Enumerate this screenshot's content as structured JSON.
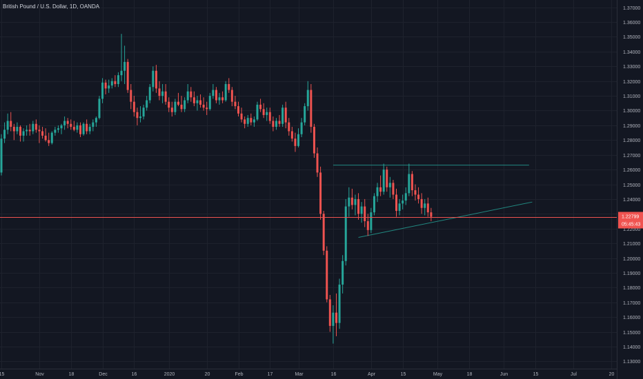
{
  "header": {
    "title": "British Pound / U.S. Dollar, 1D, OANDA"
  },
  "colors": {
    "background": "#131722",
    "grid": "#1e222d",
    "up": "#26a69a",
    "down": "#ef5350",
    "trendline": "#26a69a",
    "price_line": "#ef5350"
  },
  "price_tag": {
    "price": "1.22799",
    "countdown": "05:45:43",
    "value": 1.22799
  },
  "chart_data": {
    "type": "candlestick",
    "ylim": [
      1.125,
      1.375
    ],
    "y_ticks": [
      "1.13000",
      "1.14000",
      "1.15000",
      "1.16000",
      "1.17000",
      "1.18000",
      "1.19000",
      "1.20000",
      "1.21000",
      "1.22000",
      "1.23000",
      "1.24000",
      "1.25000",
      "1.26000",
      "1.27000",
      "1.28000",
      "1.29000",
      "1.30000",
      "1.31000",
      "1.32000",
      "1.33000",
      "1.34000",
      "1.35000",
      "1.36000",
      "1.37000"
    ],
    "x_ticks": [
      {
        "label": "15",
        "bar": 0
      },
      {
        "label": "Nov",
        "bar": 12
      },
      {
        "label": "18",
        "bar": 22
      },
      {
        "label": "Dec",
        "bar": 32
      },
      {
        "label": "16",
        "bar": 42
      },
      {
        "label": "2020",
        "bar": 53
      },
      {
        "label": "20",
        "bar": 65
      },
      {
        "label": "Feb",
        "bar": 75
      },
      {
        "label": "17",
        "bar": 85
      },
      {
        "label": "Mar",
        "bar": 94
      },
      {
        "label": "16",
        "bar": 105
      },
      {
        "label": "Apr",
        "bar": 117
      },
      {
        "label": "15",
        "bar": 127
      },
      {
        "label": "May",
        "bar": 138
      },
      {
        "label": "18",
        "bar": 148
      },
      {
        "label": "Jun",
        "bar": 159
      },
      {
        "label": "15",
        "bar": 169
      },
      {
        "label": "Jul",
        "bar": 181
      },
      {
        "label": "20",
        "bar": 193
      }
    ],
    "trendlines": [
      {
        "x1": 105,
        "y1": 1.263,
        "x2": 167,
        "y2": 1.263
      },
      {
        "x1": 113,
        "y1": 1.214,
        "x2": 168,
        "y2": 1.238
      }
    ],
    "ohlc": [
      [
        1.258,
        1.284,
        1.256,
        1.281
      ],
      [
        1.281,
        1.292,
        1.278,
        1.287
      ],
      [
        1.287,
        1.298,
        1.284,
        1.293
      ],
      [
        1.293,
        1.299,
        1.286,
        1.289
      ],
      [
        1.289,
        1.291,
        1.28,
        1.286
      ],
      [
        1.286,
        1.292,
        1.284,
        1.289
      ],
      [
        1.289,
        1.29,
        1.279,
        1.283
      ],
      [
        1.283,
        1.288,
        1.279,
        1.286
      ],
      [
        1.286,
        1.29,
        1.283,
        1.287
      ],
      [
        1.287,
        1.291,
        1.283,
        1.286
      ],
      [
        1.286,
        1.293,
        1.284,
        1.291
      ],
      [
        1.291,
        1.294,
        1.285,
        1.287
      ],
      [
        1.287,
        1.29,
        1.278,
        1.286
      ],
      [
        1.286,
        1.289,
        1.281,
        1.283
      ],
      [
        1.283,
        1.288,
        1.279,
        1.28
      ],
      [
        1.28,
        1.285,
        1.276,
        1.278
      ],
      [
        1.278,
        1.286,
        1.277,
        1.285
      ],
      [
        1.285,
        1.289,
        1.283,
        1.287
      ],
      [
        1.287,
        1.29,
        1.285,
        1.288
      ],
      [
        1.288,
        1.291,
        1.284,
        1.29
      ],
      [
        1.29,
        1.296,
        1.287,
        1.293
      ],
      [
        1.293,
        1.295,
        1.288,
        1.291
      ],
      [
        1.291,
        1.294,
        1.287,
        1.289
      ],
      [
        1.289,
        1.293,
        1.286,
        1.287
      ],
      [
        1.287,
        1.292,
        1.285,
        1.29
      ],
      [
        1.29,
        1.292,
        1.282,
        1.284
      ],
      [
        1.284,
        1.292,
        1.283,
        1.291
      ],
      [
        1.291,
        1.294,
        1.284,
        1.286
      ],
      [
        1.286,
        1.291,
        1.284,
        1.289
      ],
      [
        1.289,
        1.294,
        1.286,
        1.292
      ],
      [
        1.292,
        1.296,
        1.289,
        1.295
      ],
      [
        1.295,
        1.31,
        1.294,
        1.308
      ],
      [
        1.308,
        1.322,
        1.305,
        1.319
      ],
      [
        1.319,
        1.321,
        1.311,
        1.315
      ],
      [
        1.315,
        1.321,
        1.312,
        1.317
      ],
      [
        1.317,
        1.322,
        1.315,
        1.32
      ],
      [
        1.32,
        1.324,
        1.316,
        1.318
      ],
      [
        1.318,
        1.326,
        1.316,
        1.324
      ],
      [
        1.324,
        1.352,
        1.32,
        1.327
      ],
      [
        1.327,
        1.344,
        1.318,
        1.333
      ],
      [
        1.333,
        1.335,
        1.312,
        1.314
      ],
      [
        1.314,
        1.318,
        1.301,
        1.306
      ],
      [
        1.306,
        1.31,
        1.296,
        1.299
      ],
      [
        1.299,
        1.302,
        1.29,
        1.295
      ],
      [
        1.295,
        1.303,
        1.292,
        1.296
      ],
      [
        1.296,
        1.304,
        1.294,
        1.302
      ],
      [
        1.302,
        1.31,
        1.3,
        1.307
      ],
      [
        1.307,
        1.318,
        1.305,
        1.316
      ],
      [
        1.316,
        1.33,
        1.313,
        1.327
      ],
      [
        1.327,
        1.331,
        1.312,
        1.315
      ],
      [
        1.315,
        1.32,
        1.307,
        1.31
      ],
      [
        1.31,
        1.318,
        1.305,
        1.313
      ],
      [
        1.313,
        1.318,
        1.304,
        1.306
      ],
      [
        1.306,
        1.309,
        1.299,
        1.302
      ],
      [
        1.302,
        1.306,
        1.296,
        1.299
      ],
      [
        1.299,
        1.308,
        1.297,
        1.306
      ],
      [
        1.306,
        1.312,
        1.303,
        1.304
      ],
      [
        1.304,
        1.31,
        1.299,
        1.301
      ],
      [
        1.301,
        1.309,
        1.299,
        1.307
      ],
      [
        1.307,
        1.318,
        1.305,
        1.313
      ],
      [
        1.313,
        1.316,
        1.306,
        1.309
      ],
      [
        1.309,
        1.313,
        1.303,
        1.305
      ],
      [
        1.305,
        1.31,
        1.3,
        1.307
      ],
      [
        1.307,
        1.311,
        1.302,
        1.304
      ],
      [
        1.304,
        1.309,
        1.3,
        1.302
      ],
      [
        1.302,
        1.306,
        1.297,
        1.301
      ],
      [
        1.301,
        1.312,
        1.3,
        1.31
      ],
      [
        1.31,
        1.318,
        1.308,
        1.314
      ],
      [
        1.314,
        1.316,
        1.305,
        1.307
      ],
      [
        1.307,
        1.312,
        1.304,
        1.309
      ],
      [
        1.309,
        1.313,
        1.305,
        1.307
      ],
      [
        1.307,
        1.32,
        1.306,
        1.318
      ],
      [
        1.318,
        1.322,
        1.312,
        1.314
      ],
      [
        1.314,
        1.316,
        1.303,
        1.306
      ],
      [
        1.306,
        1.31,
        1.301,
        1.303
      ],
      [
        1.303,
        1.306,
        1.296,
        1.298
      ],
      [
        1.298,
        1.302,
        1.292,
        1.294
      ],
      [
        1.294,
        1.296,
        1.288,
        1.291
      ],
      [
        1.291,
        1.297,
        1.289,
        1.295
      ],
      [
        1.295,
        1.298,
        1.29,
        1.292
      ],
      [
        1.292,
        1.296,
        1.289,
        1.294
      ],
      [
        1.294,
        1.306,
        1.293,
        1.304
      ],
      [
        1.304,
        1.308,
        1.299,
        1.301
      ],
      [
        1.301,
        1.305,
        1.295,
        1.297
      ],
      [
        1.297,
        1.302,
        1.293,
        1.299
      ],
      [
        1.299,
        1.302,
        1.291,
        1.293
      ],
      [
        1.293,
        1.296,
        1.286,
        1.289
      ],
      [
        1.289,
        1.295,
        1.287,
        1.293
      ],
      [
        1.293,
        1.297,
        1.289,
        1.291
      ],
      [
        1.291,
        1.304,
        1.289,
        1.302
      ],
      [
        1.302,
        1.306,
        1.288,
        1.292
      ],
      [
        1.292,
        1.295,
        1.283,
        1.286
      ],
      [
        1.286,
        1.289,
        1.279,
        1.281
      ],
      [
        1.281,
        1.285,
        1.272,
        1.276
      ],
      [
        1.276,
        1.288,
        1.275,
        1.284
      ],
      [
        1.284,
        1.295,
        1.282,
        1.292
      ],
      [
        1.292,
        1.305,
        1.29,
        1.303
      ],
      [
        1.303,
        1.32,
        1.3,
        1.314
      ],
      [
        1.314,
        1.318,
        1.285,
        1.289
      ],
      [
        1.289,
        1.291,
        1.268,
        1.271
      ],
      [
        1.271,
        1.275,
        1.255,
        1.258
      ],
      [
        1.258,
        1.262,
        1.226,
        1.23
      ],
      [
        1.23,
        1.232,
        1.202,
        1.205
      ],
      [
        1.205,
        1.208,
        1.17,
        1.172
      ],
      [
        1.172,
        1.175,
        1.15,
        1.154
      ],
      [
        1.154,
        1.168,
        1.142,
        1.163
      ],
      [
        1.163,
        1.176,
        1.147,
        1.156
      ],
      [
        1.156,
        1.186,
        1.152,
        1.182
      ],
      [
        1.182,
        1.202,
        1.176,
        1.198
      ],
      [
        1.198,
        1.24,
        1.195,
        1.235
      ],
      [
        1.235,
        1.248,
        1.228,
        1.241
      ],
      [
        1.241,
        1.247,
        1.233,
        1.236
      ],
      [
        1.236,
        1.243,
        1.229,
        1.24
      ],
      [
        1.24,
        1.244,
        1.226,
        1.23
      ],
      [
        1.23,
        1.238,
        1.224,
        1.235
      ],
      [
        1.235,
        1.24,
        1.221,
        1.225
      ],
      [
        1.225,
        1.23,
        1.215,
        1.219
      ],
      [
        1.219,
        1.234,
        1.217,
        1.231
      ],
      [
        1.231,
        1.244,
        1.229,
        1.242
      ],
      [
        1.242,
        1.251,
        1.238,
        1.248
      ],
      [
        1.248,
        1.256,
        1.242,
        1.245
      ],
      [
        1.245,
        1.264,
        1.243,
        1.26
      ],
      [
        1.26,
        1.262,
        1.245,
        1.248
      ],
      [
        1.248,
        1.255,
        1.241,
        1.251
      ],
      [
        1.251,
        1.253,
        1.24,
        1.243
      ],
      [
        1.243,
        1.247,
        1.228,
        1.232
      ],
      [
        1.232,
        1.24,
        1.229,
        1.237
      ],
      [
        1.237,
        1.243,
        1.233,
        1.239
      ],
      [
        1.239,
        1.248,
        1.236,
        1.244
      ],
      [
        1.244,
        1.264,
        1.242,
        1.257
      ],
      [
        1.257,
        1.259,
        1.242,
        1.246
      ],
      [
        1.246,
        1.25,
        1.239,
        1.243
      ],
      [
        1.243,
        1.248,
        1.237,
        1.24
      ],
      [
        1.24,
        1.244,
        1.23,
        1.234
      ],
      [
        1.234,
        1.24,
        1.229,
        1.237
      ],
      [
        1.237,
        1.241,
        1.228,
        1.231
      ],
      [
        1.231,
        1.234,
        1.225,
        1.228
      ]
    ]
  }
}
